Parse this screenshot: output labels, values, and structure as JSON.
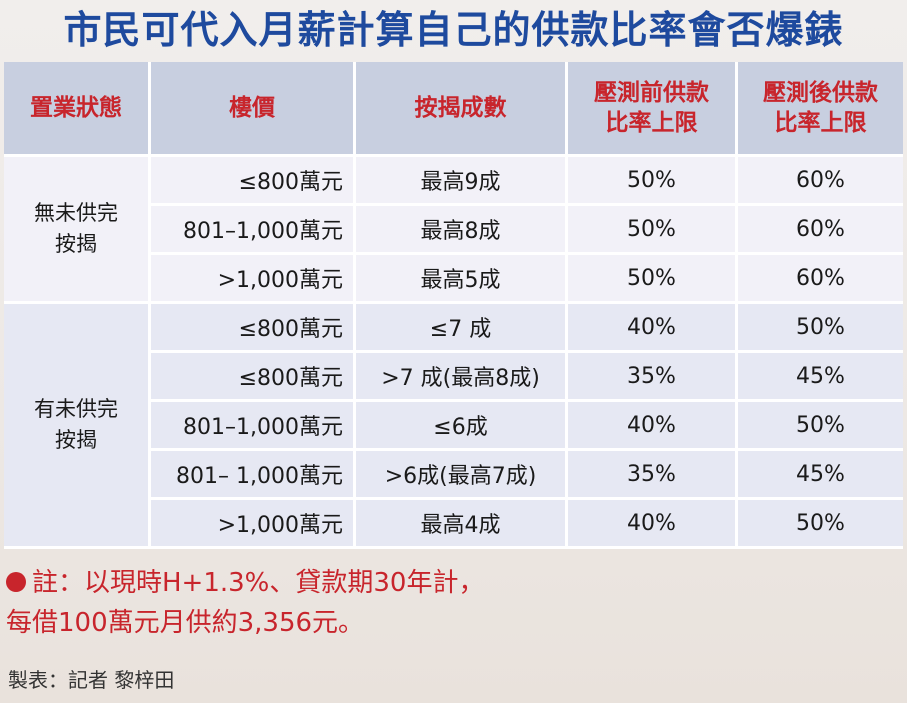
{
  "title": "市民可代入月薪計算自己的供款比率會否爆錶",
  "table": {
    "headers": [
      "置業狀態",
      "樓價",
      "按揭成數",
      "壓測前供款\n比率上限",
      "壓測後供款\n比率上限"
    ],
    "groups": [
      {
        "status": "無未供完\n按揭",
        "rows": [
          {
            "price": "≤800萬元",
            "ltv": "最高9成",
            "before": "50%",
            "after": "60%"
          },
          {
            "price": "801–1,000萬元",
            "ltv": "最高8成",
            "before": "50%",
            "after": "60%"
          },
          {
            "price": ">1,000萬元",
            "ltv": "最高5成",
            "before": "50%",
            "after": "60%"
          }
        ]
      },
      {
        "status": "有未供完\n按揭",
        "rows": [
          {
            "price": "≤800萬元",
            "ltv": "≤7 成",
            "before": "40%",
            "after": "50%"
          },
          {
            "price": "≤800萬元",
            "ltv": ">7 成(最高8成)",
            "before": "35%",
            "after": "45%"
          },
          {
            "price": "801–1,000萬元",
            "ltv": "≤6成",
            "before": "40%",
            "after": "50%"
          },
          {
            "price": "801– 1,000萬元",
            "ltv": ">6成(最高7成)",
            "before": "35%",
            "after": "45%"
          },
          {
            "price": ">1,000萬元",
            "ltv": "最高4成",
            "before": "40%",
            "after": "50%"
          }
        ]
      }
    ]
  },
  "note": {
    "line1": "註：以現時H+1.3%、貸款期30年計，",
    "line2": "每借100萬元月供約3,356元。"
  },
  "credit": "製表：記者 黎梓田",
  "colors": {
    "title": "#1e4a9e",
    "header_bg": "#c8cfe0",
    "header_text": "#c8252c",
    "note_text": "#c8252c",
    "row_light": "#f2f1f8",
    "row_dark": "#e6e8f3"
  }
}
